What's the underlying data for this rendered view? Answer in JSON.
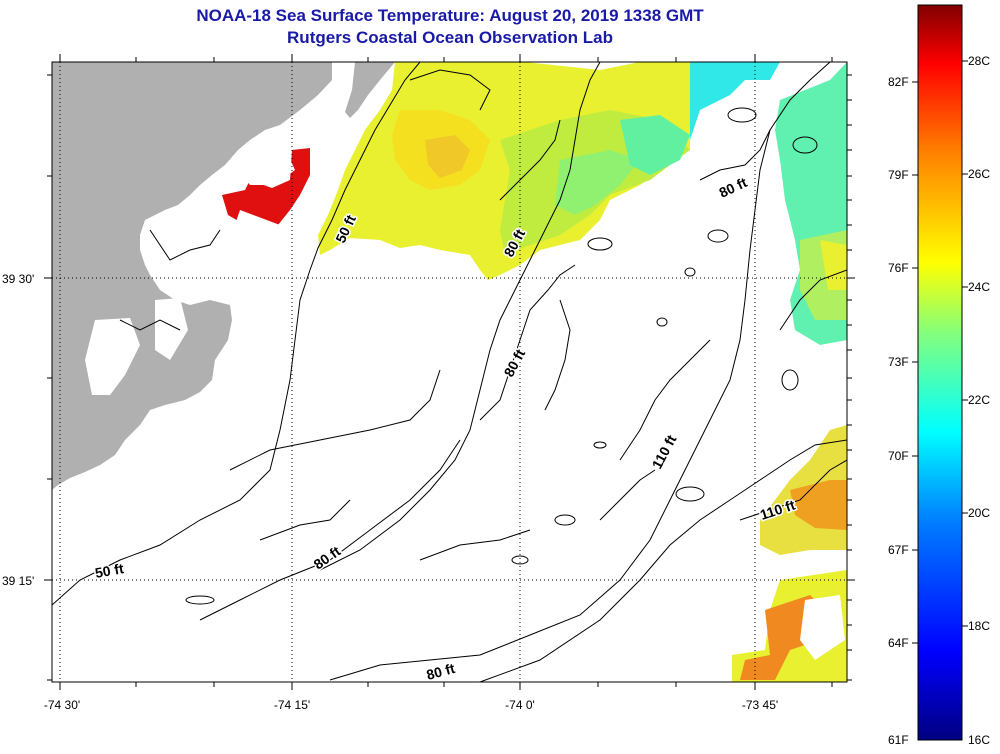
{
  "title": {
    "line1": "NOAA-18 Sea Surface Temperature:  August 20, 2019 1338 GMT",
    "line2": "Rutgers Coastal Ocean Observation Lab"
  },
  "axes": {
    "lon_labels": [
      "-74 30'",
      "-74 15'",
      "-74 0'",
      "-73 45'"
    ],
    "lat_labels": [
      "39 30'",
      "39 15'"
    ]
  },
  "contour_labels": [
    "50 ft",
    "80 ft",
    "80 ft",
    "80 ft",
    "110 ft",
    "110 ft",
    "50 ft",
    "80 ft",
    "80 ft"
  ],
  "colorbar": {
    "fahrenheit_labels": [
      "82F",
      "79F",
      "76F",
      "73F",
      "70F",
      "67F",
      "64F",
      "61F"
    ],
    "celsius_labels": [
      "28C",
      "26C",
      "24C",
      "22C",
      "20C",
      "18C",
      "16C"
    ],
    "colors": [
      "#000080",
      "#0000ff",
      "#0080ff",
      "#00ffff",
      "#80ff80",
      "#ffff00",
      "#ff8000",
      "#ff0000",
      "#800000"
    ]
  },
  "colors": {
    "land": "#b0b0b0",
    "title": "#1a1aa8"
  }
}
